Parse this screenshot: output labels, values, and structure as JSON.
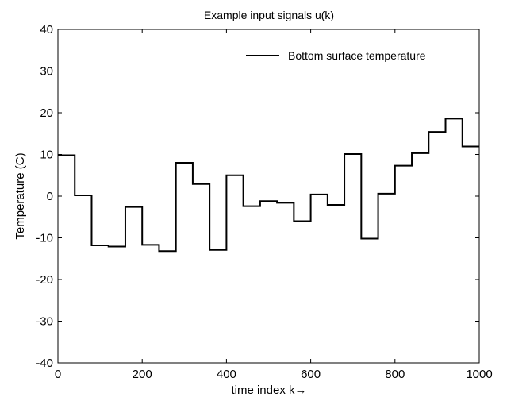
{
  "chart_data": {
    "type": "line",
    "step": true,
    "title": "Example input signals u(k)",
    "xlabel": "time index k→",
    "ylabel": "Temperature (C)",
    "xlim": [
      0,
      1000
    ],
    "ylim": [
      -40,
      40
    ],
    "xticks": [
      0,
      200,
      400,
      600,
      800,
      1000
    ],
    "yticks": [
      -40,
      -30,
      -20,
      -10,
      0,
      10,
      20,
      30,
      40
    ],
    "xtick_labels": [
      "0",
      "200",
      "400",
      "600",
      "800",
      "1000"
    ],
    "ytick_labels": [
      "-40",
      "-30",
      "-20",
      "-10",
      "0",
      "10",
      "20",
      "30",
      "40"
    ],
    "grid": false,
    "legend_position": "top-right",
    "series": [
      {
        "name": "Bottom surface temperature",
        "color": "#000000",
        "x": [
          0,
          40,
          80,
          120,
          160,
          200,
          240,
          280,
          320,
          360,
          400,
          440,
          480,
          520,
          560,
          600,
          640,
          680,
          720,
          760,
          800,
          840,
          880,
          920,
          960,
          1000
        ],
        "values": [
          9.8,
          0.2,
          -11.8,
          -12.1,
          -2.6,
          -11.7,
          -13.2,
          8.0,
          2.9,
          -12.9,
          5.0,
          -2.4,
          -1.2,
          -1.6,
          -6.0,
          0.4,
          -2.1,
          10.1,
          -10.2,
          0.6,
          7.3,
          10.3,
          15.4,
          18.6,
          11.9,
          11.9
        ]
      }
    ]
  }
}
